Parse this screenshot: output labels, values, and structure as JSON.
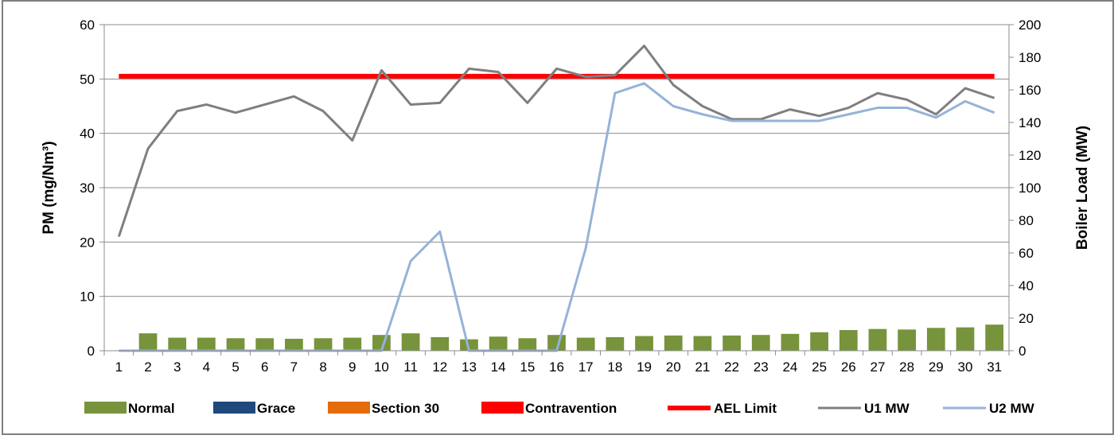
{
  "chart_data": {
    "type": "bar",
    "x": [
      "1",
      "2",
      "3",
      "4",
      "5",
      "6",
      "7",
      "8",
      "9",
      "10",
      "11",
      "12",
      "13",
      "14",
      "15",
      "16",
      "17",
      "18",
      "19",
      "20",
      "21",
      "22",
      "23",
      "24",
      "25",
      "26",
      "27",
      "28",
      "29",
      "30",
      "31"
    ],
    "y_left": {
      "label": "PM (mg/Nm³)",
      "range": [
        0,
        60
      ],
      "ticks": [
        "0",
        "10",
        "20",
        "30",
        "40",
        "50",
        "60"
      ]
    },
    "y_right": {
      "label": "Boiler Load (MW)",
      "range": [
        0,
        200
      ],
      "ticks": [
        "0",
        "20",
        "40",
        "60",
        "80",
        "100",
        "120",
        "140",
        "160",
        "180",
        "200"
      ]
    },
    "grid": true,
    "legend_position": "bottom",
    "bar_series": [
      {
        "name": "Normal",
        "color": "#77933c",
        "axis": "left",
        "values": [
          0,
          3.2,
          2.4,
          2.4,
          2.3,
          2.3,
          2.2,
          2.3,
          2.4,
          2.9,
          3.2,
          2.5,
          2.1,
          2.6,
          2.3,
          2.9,
          2.4,
          2.5,
          2.7,
          2.8,
          2.7,
          2.8,
          2.9,
          3.1,
          3.4,
          3.8,
          4.0,
          3.9,
          4.2,
          4.3,
          4.8
        ]
      },
      {
        "name": "Grace",
        "color": "#1f497d",
        "axis": "left",
        "values": []
      },
      {
        "name": "Section 30",
        "color": "#e46c0a",
        "axis": "left",
        "values": []
      },
      {
        "name": "Contravention",
        "color": "#ff0000",
        "axis": "left",
        "values": []
      }
    ],
    "line_series": [
      {
        "name": "AEL Limit",
        "color": "#ff0000",
        "axis": "left",
        "width": 6,
        "values": [
          50.5,
          50.5,
          50.5,
          50.5,
          50.5,
          50.5,
          50.5,
          50.5,
          50.5,
          50.5,
          50.5,
          50.5,
          50.5,
          50.5,
          50.5,
          50.5,
          50.5,
          50.5,
          50.5,
          50.5,
          50.5,
          50.5,
          50.5,
          50.5,
          50.5,
          50.5,
          50.5,
          50.5,
          50.5,
          50.5,
          50.5
        ]
      },
      {
        "name": "U1 MW",
        "color": "#7f7f7f",
        "axis": "right",
        "width": 3,
        "values": [
          70,
          124,
          147,
          151,
          146,
          151,
          156,
          147,
          129,
          172,
          151,
          152,
          173,
          171,
          152,
          173,
          168,
          169,
          187,
          163,
          150,
          142,
          142,
          148,
          144,
          149,
          158,
          154,
          145,
          161,
          155
        ]
      },
      {
        "name": "U2 MW",
        "color": "#95b3d7",
        "axis": "right",
        "width": 3,
        "values": [
          0,
          0,
          0,
          0,
          0,
          0,
          0,
          0,
          0,
          0,
          55,
          73,
          0,
          0,
          0,
          0,
          63,
          158,
          164,
          150,
          145,
          141,
          141,
          141,
          141,
          145,
          149,
          149,
          143,
          153,
          146
        ]
      }
    ]
  }
}
